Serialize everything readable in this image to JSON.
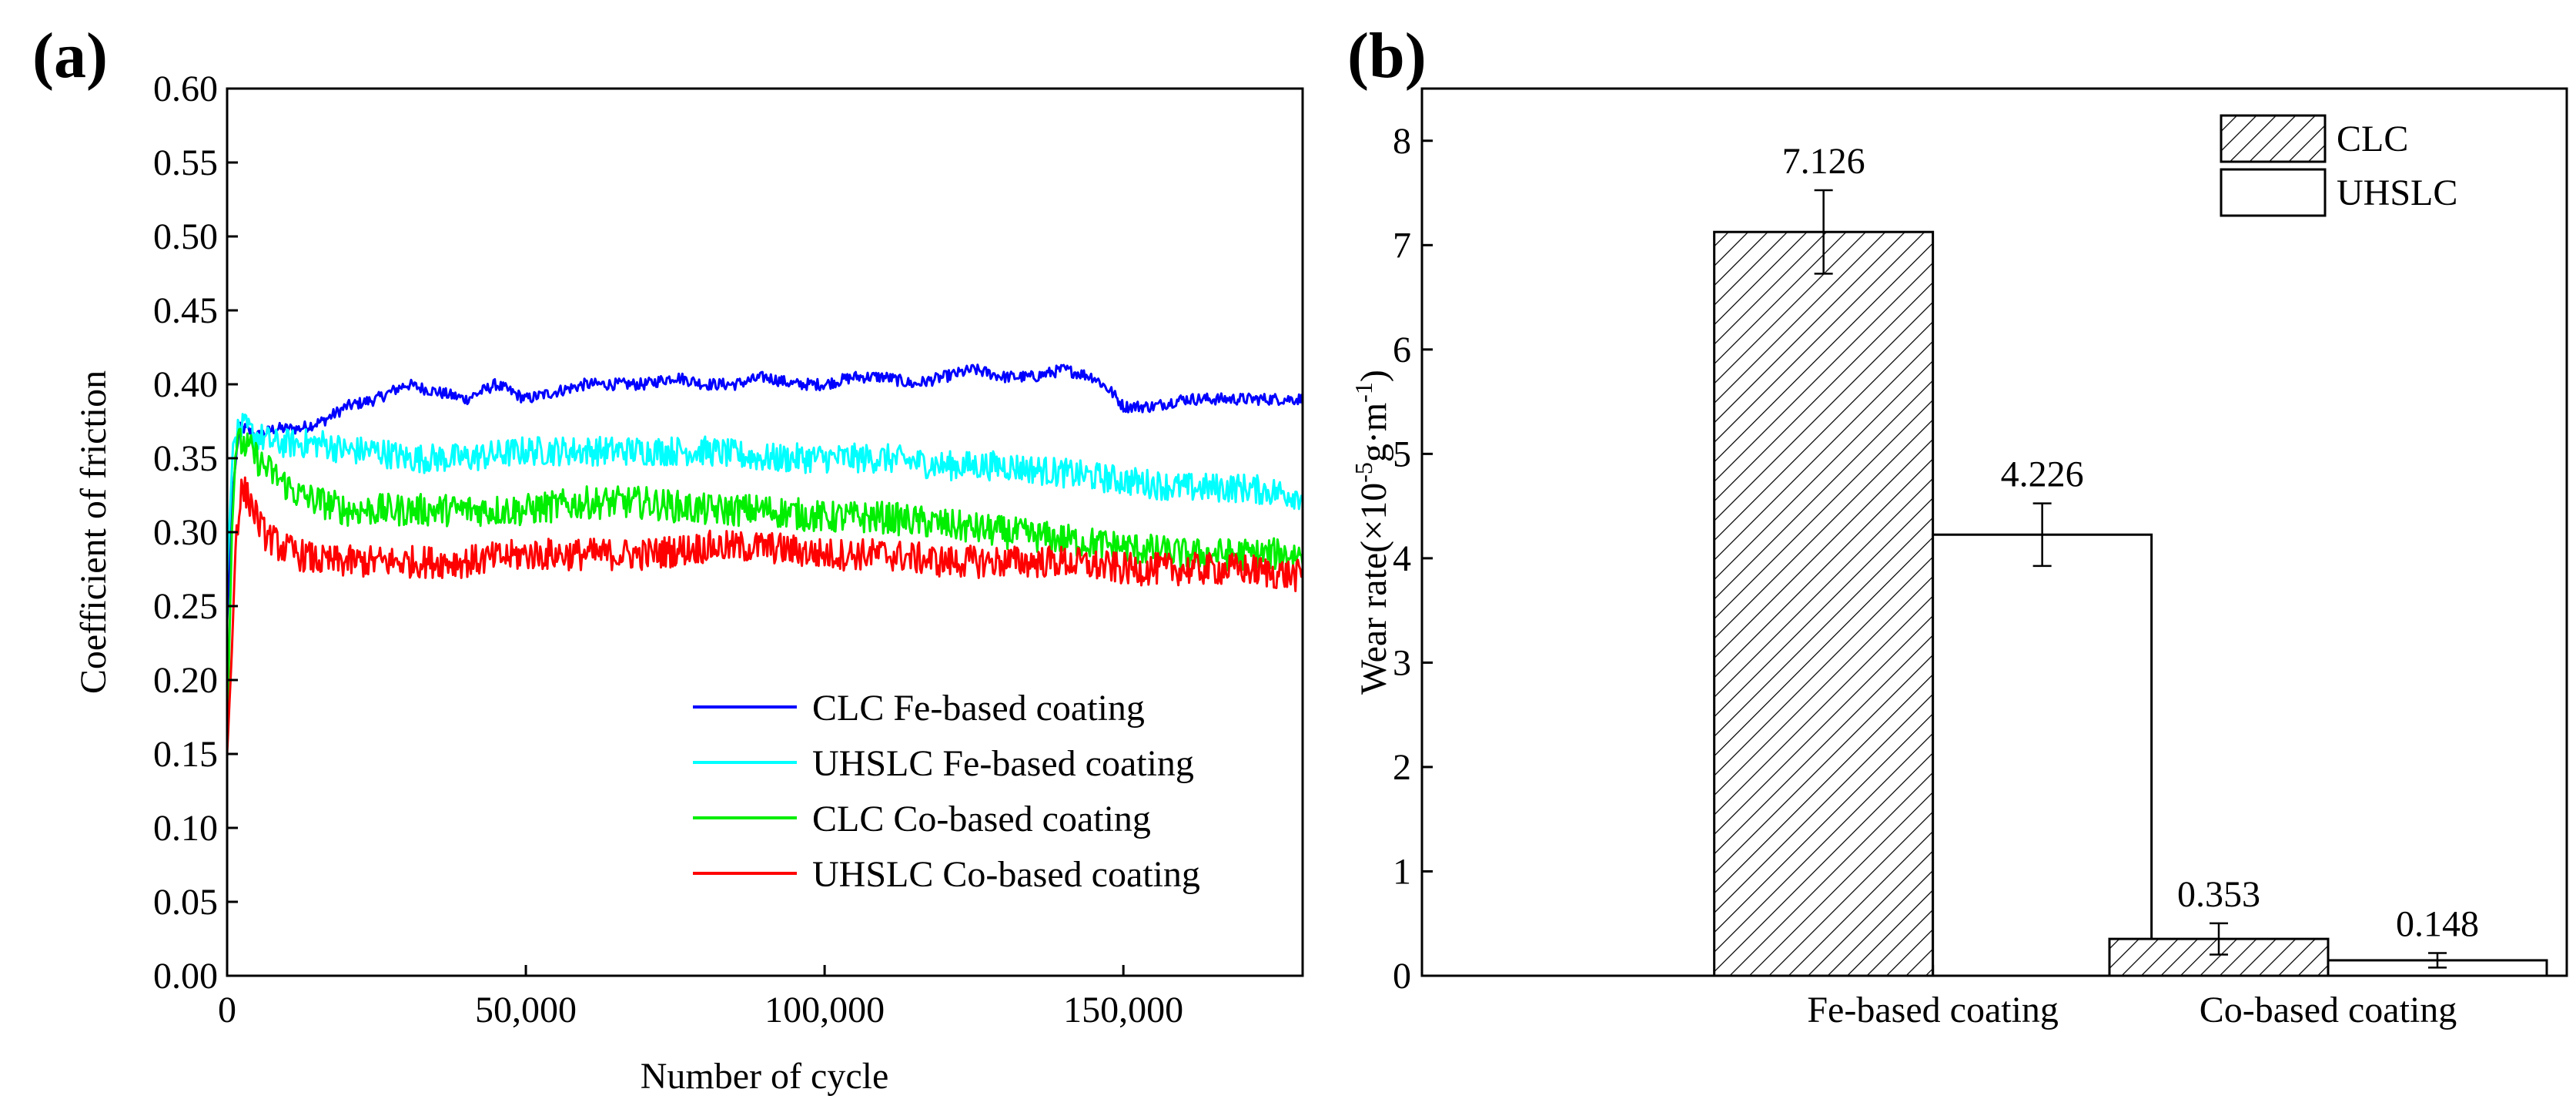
{
  "figure": {
    "panel_a_label": "(a)",
    "panel_b_label": "(b)"
  },
  "chart_data": [
    {
      "type": "line",
      "panel": "(a)",
      "title": "",
      "xlabel": "Number of cycle",
      "ylabel": "Coefficient of friction",
      "xlim": [
        0,
        180000
      ],
      "ylim": [
        0,
        0.6
      ],
      "xticks": [
        0,
        50000,
        100000,
        150000
      ],
      "xtick_labels": [
        "0",
        "50,000",
        "100,000",
        "150,000"
      ],
      "yticks": [
        0,
        0.05,
        0.1,
        0.15,
        0.2,
        0.25,
        0.3,
        0.35,
        0.4,
        0.45,
        0.5,
        0.55,
        0.6
      ],
      "ytick_labels": [
        "0.00",
        "0.05",
        "0.10",
        "0.15",
        "0.20",
        "0.25",
        "0.30",
        "0.35",
        "0.40",
        "0.45",
        "0.50",
        "0.55",
        "0.60"
      ],
      "legend_position": "bottom-right",
      "series": [
        {
          "name": "CLC Fe-based coating",
          "color": "#0000ff",
          "x": [
            0,
            1000,
            2000,
            3000,
            5000,
            8000,
            12000,
            16000,
            20000,
            25000,
            30000,
            35000,
            40000,
            45000,
            50000,
            55000,
            60000,
            65000,
            70000,
            75000,
            80000,
            85000,
            90000,
            95000,
            100000,
            105000,
            110000,
            115000,
            120000,
            125000,
            130000,
            135000,
            140000,
            145000,
            148000,
            150000,
            155000,
            160000,
            165000,
            170000,
            175000,
            180000
          ],
          "y": [
            0.24,
            0.33,
            0.37,
            0.37,
            0.365,
            0.37,
            0.37,
            0.375,
            0.385,
            0.39,
            0.4,
            0.395,
            0.39,
            0.4,
            0.39,
            0.395,
            0.4,
            0.4,
            0.4,
            0.405,
            0.4,
            0.4,
            0.405,
            0.4,
            0.4,
            0.405,
            0.405,
            0.4,
            0.405,
            0.41,
            0.405,
            0.405,
            0.41,
            0.405,
            0.395,
            0.385,
            0.385,
            0.39,
            0.39,
            0.39,
            0.39,
            0.39
          ],
          "noise": 0.004
        },
        {
          "name": "UHSLC Fe-based coating",
          "color": "#00ffff",
          "x": [
            0,
            1000,
            2000,
            3000,
            5000,
            8000,
            12000,
            16000,
            20000,
            25000,
            30000,
            40000,
            50000,
            60000,
            70000,
            80000,
            90000,
            100000,
            110000,
            120000,
            130000,
            140000,
            150000,
            160000,
            170000,
            180000
          ],
          "y": [
            0.27,
            0.36,
            0.37,
            0.37,
            0.365,
            0.36,
            0.36,
            0.36,
            0.355,
            0.355,
            0.35,
            0.35,
            0.355,
            0.355,
            0.355,
            0.355,
            0.35,
            0.35,
            0.35,
            0.345,
            0.345,
            0.34,
            0.335,
            0.33,
            0.33,
            0.325
          ],
          "noise": 0.01
        },
        {
          "name": "CLC Co-based coating",
          "color": "#00ee00",
          "x": [
            0,
            800,
            1500,
            2500,
            4000,
            6000,
            9000,
            12000,
            16000,
            20000,
            25000,
            30000,
            40000,
            50000,
            60000,
            70000,
            80000,
            90000,
            100000,
            110000,
            120000,
            130000,
            140000,
            150000,
            160000,
            170000,
            180000
          ],
          "y": [
            0.16,
            0.3,
            0.36,
            0.36,
            0.355,
            0.345,
            0.335,
            0.325,
            0.32,
            0.315,
            0.315,
            0.315,
            0.315,
            0.315,
            0.32,
            0.32,
            0.315,
            0.315,
            0.31,
            0.31,
            0.305,
            0.3,
            0.295,
            0.29,
            0.285,
            0.285,
            0.285
          ],
          "noise": 0.011
        },
        {
          "name": "UHSLC Co-based coating",
          "color": "#ff0000",
          "x": [
            0,
            800,
            1500,
            2500,
            4000,
            6000,
            9000,
            12000,
            16000,
            20000,
            25000,
            30000,
            40000,
            50000,
            60000,
            70000,
            80000,
            90000,
            100000,
            110000,
            120000,
            130000,
            140000,
            150000,
            160000,
            170000,
            180000
          ],
          "y": [
            0.15,
            0.22,
            0.3,
            0.33,
            0.32,
            0.3,
            0.29,
            0.285,
            0.28,
            0.28,
            0.28,
            0.28,
            0.28,
            0.285,
            0.285,
            0.285,
            0.29,
            0.29,
            0.285,
            0.285,
            0.28,
            0.28,
            0.28,
            0.275,
            0.275,
            0.275,
            0.27
          ],
          "noise": 0.011
        }
      ]
    },
    {
      "type": "bar",
      "panel": "(b)",
      "title": "",
      "xlabel": "",
      "ylabel_main": "Wear rate(×10",
      "ylabel_sup1": "-5",
      "ylabel_mid": "g·m",
      "ylabel_sup2": "-1",
      "ylabel_end": ")",
      "categories": [
        "Fe-based coating",
        "Co-based coating"
      ],
      "ylim": [
        0,
        8.5
      ],
      "yticks": [
        0,
        1,
        2,
        3,
        4,
        5,
        6,
        7,
        8
      ],
      "ytick_labels": [
        "0",
        "1",
        "2",
        "3",
        "4",
        "5",
        "6",
        "7",
        "8"
      ],
      "legend_position": "top-right",
      "series": [
        {
          "name": "CLC",
          "pattern": "hatch",
          "values": [
            7.126,
            0.353
          ],
          "value_labels": [
            "7.126",
            "0.353"
          ],
          "errors": [
            0.4,
            0.15
          ]
        },
        {
          "name": "UHSLC",
          "pattern": "none",
          "values": [
            4.226,
            0.148
          ],
          "value_labels": [
            "4.226",
            "0.148"
          ],
          "errors": [
            0.3,
            0.07
          ]
        }
      ]
    }
  ]
}
